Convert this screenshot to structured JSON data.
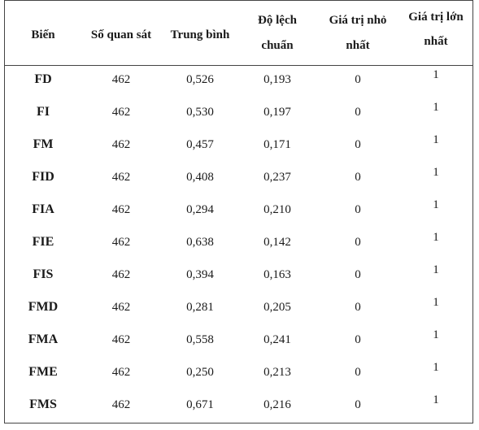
{
  "table": {
    "headers": {
      "variable": "Biến",
      "observations": "Số quan sát",
      "mean": "Trung bình",
      "std_line1": "Độ lệch",
      "std_line2": "chuẩn",
      "min_line1": "Giá trị nhỏ",
      "min_line2": "nhất",
      "max_line1": "Giá trị lớn",
      "max_line2": "nhất"
    },
    "rows": [
      {
        "variable": "FD",
        "observations": "462",
        "mean": "0,526",
        "std": "0,193",
        "min": "0",
        "max": "1"
      },
      {
        "variable": "FI",
        "observations": "462",
        "mean": "0,530",
        "std": "0,197",
        "min": "0",
        "max": "1"
      },
      {
        "variable": "FM",
        "observations": "462",
        "mean": "0,457",
        "std": "0,171",
        "min": "0",
        "max": "1"
      },
      {
        "variable": "FID",
        "observations": "462",
        "mean": "0,408",
        "std": "0,237",
        "min": "0",
        "max": "1"
      },
      {
        "variable": "FIA",
        "observations": "462",
        "mean": "0,294",
        "std": "0,210",
        "min": "0",
        "max": "1"
      },
      {
        "variable": "FIE",
        "observations": "462",
        "mean": "0,638",
        "std": "0,142",
        "min": "0",
        "max": "1"
      },
      {
        "variable": "FIS",
        "observations": "462",
        "mean": "0,394",
        "std": "0,163",
        "min": "0",
        "max": "1"
      },
      {
        "variable": "FMD",
        "observations": "462",
        "mean": "0,281",
        "std": "0,205",
        "min": "0",
        "max": "1"
      },
      {
        "variable": "FMA",
        "observations": "462",
        "mean": "0,558",
        "std": "0,241",
        "min": "0",
        "max": "1"
      },
      {
        "variable": "FME",
        "observations": "462",
        "mean": "0,250",
        "std": "0,213",
        "min": "0",
        "max": "1"
      },
      {
        "variable": "FMS",
        "observations": "462",
        "mean": "0,671",
        "std": "0,216",
        "min": "0",
        "max": "1"
      }
    ]
  }
}
